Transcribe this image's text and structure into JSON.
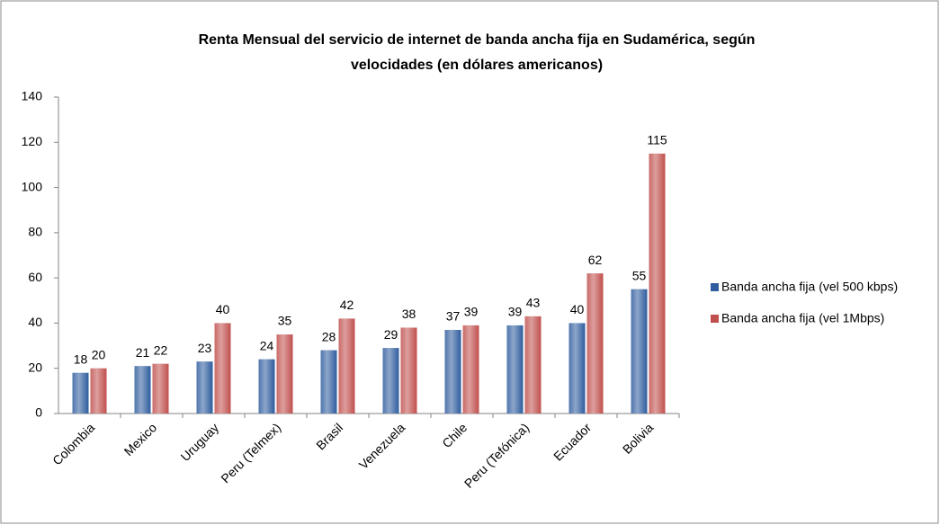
{
  "chart_data": {
    "type": "bar",
    "title": "Renta Mensual del servicio de internet de banda ancha fija en Sudamérica, según velocidades (en dólares americanos)",
    "categories": [
      "Colombia",
      "Mexico",
      "Uruguay",
      "Peru (Telmex)",
      "Brasil",
      "Venezuela",
      "Chile",
      "Peru (Tefónica)",
      "Ecuador",
      "Bolivia"
    ],
    "series": [
      {
        "name": "Banda ancha fija (vel 500 kbps)",
        "color": "#2f5d9e",
        "values": [
          18,
          21,
          23,
          24,
          28,
          29,
          37,
          39,
          40,
          55
        ]
      },
      {
        "name": "Banda ancha fija (vel 1Mbps)",
        "color": "#c0504d",
        "values": [
          20,
          22,
          40,
          35,
          42,
          38,
          39,
          43,
          62,
          115
        ]
      }
    ],
    "ylim": [
      0,
      140
    ],
    "yticks": [
      0,
      20,
      40,
      60,
      80,
      100,
      120,
      140
    ],
    "grid": false,
    "legend": "right"
  }
}
